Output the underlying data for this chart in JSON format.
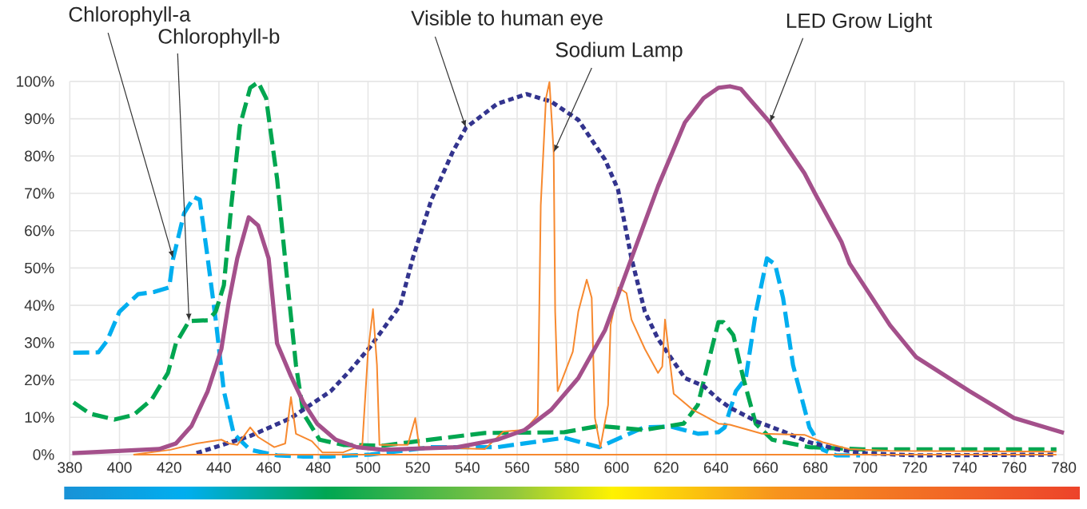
{
  "chart_data": {
    "type": "line",
    "xlim": [
      380,
      780
    ],
    "ylim": [
      -2,
      100
    ],
    "xticks": [
      380,
      400,
      420,
      440,
      460,
      480,
      500,
      520,
      540,
      560,
      580,
      600,
      620,
      640,
      660,
      680,
      700,
      720,
      740,
      760,
      780
    ],
    "yticks": [
      {
        "value": 0,
        "label": "0%"
      },
      {
        "value": 10,
        "label": "10%"
      },
      {
        "value": 20,
        "label": "20%"
      },
      {
        "value": 30,
        "label": "30%"
      },
      {
        "value": 40,
        "label": "40%"
      },
      {
        "value": 50,
        "label": "50%"
      },
      {
        "value": 60,
        "label": "60%"
      },
      {
        "value": 70,
        "label": "70%"
      },
      {
        "value": 80,
        "label": "80%"
      },
      {
        "value": 90,
        "label": "90%"
      },
      {
        "value": 100,
        "label": "100%"
      }
    ],
    "grid": true,
    "series": [
      {
        "name": "Chlorophyll-a",
        "color": "#00aeef",
        "line_style": "dashed",
        "x": [
          381.4,
          391.5,
          395,
          400,
          407.5,
          414,
          420,
          421.6,
          426,
          430,
          432.3,
          435.5,
          438.7,
          442,
          446,
          452.6,
          463.4,
          474,
          485,
          493.4,
          501,
          525.5,
          552,
          579,
          593,
          611,
          622,
          632.7,
          641,
          643.5,
          648,
          652,
          656,
          660.5,
          663.8,
          667,
          671,
          677.6,
          683,
          688.5,
          698
        ],
        "values": [
          27.3,
          27.4,
          30.5,
          38.3,
          43,
          43.6,
          44.8,
          52.6,
          64.7,
          69,
          68.3,
          52.6,
          36.2,
          17,
          5.5,
          1.3,
          -0.2,
          -0.5,
          -0.5,
          -0.2,
          0,
          2,
          2,
          4.5,
          2,
          7.3,
          7.5,
          5.6,
          6,
          7.3,
          17,
          20.5,
          38,
          52.6,
          51,
          42,
          24,
          7.3,
          1.3,
          -0.2,
          -0.2
        ]
      },
      {
        "name": "Chlorophyll-b",
        "color": "#00a650",
        "line_style": "dashed",
        "x": [
          381.5,
          388,
          398,
          405.6,
          413,
          419.5,
          422.7,
          428,
          435.5,
          438.7,
          442,
          445,
          448.4,
          452.6,
          455.8,
          459,
          463.4,
          467.7,
          471,
          474,
          480.5,
          490,
          506,
          520,
          547,
          579,
          593,
          611,
          627,
          632.7,
          638,
          641,
          643,
          647,
          651,
          656,
          662.6,
          677.6,
          699,
          777
        ],
        "values": [
          14,
          11,
          9.4,
          10.6,
          14.8,
          21.9,
          29.8,
          35.8,
          36,
          38.3,
          45.4,
          66.8,
          88,
          98.3,
          99.8,
          95.5,
          74,
          45.4,
          24,
          11,
          4,
          2.6,
          2.4,
          3.6,
          5.8,
          6,
          7.7,
          6.6,
          8.3,
          13.3,
          27.6,
          35.5,
          35.5,
          32,
          20.5,
          8.3,
          4,
          2,
          1.4,
          1.4
        ]
      },
      {
        "name": "Visible to human eye",
        "color": "#33348e",
        "line_style": "dotted",
        "x": [
          431,
          452.6,
          469,
          485,
          493,
          501,
          513,
          518,
          525.5,
          534,
          539.4,
          552,
          563.8,
          573.7,
          584.6,
          595.4,
          600.6,
          606,
          611.4,
          616.7,
          627.5,
          635,
          641,
          645.6,
          656,
          667,
          677.6,
          688.5,
          699,
          720.6,
          777
        ],
        "values": [
          0.4,
          5,
          9.8,
          17,
          22.7,
          29,
          40,
          52.6,
          68.3,
          81,
          87.6,
          94,
          96.6,
          94.6,
          89.7,
          79,
          71,
          52.6,
          38.3,
          31,
          20.5,
          18.4,
          14.8,
          12.6,
          9,
          6.2,
          3.3,
          1.5,
          0.4,
          -0.2,
          0
        ]
      },
      {
        "name": "Sodium Lamp",
        "color": "#f7892f",
        "line_style": "solid",
        "x": [
          405.6,
          420.5,
          431,
          441,
          444,
          447.4,
          452.6,
          455.8,
          462.3,
          466.7,
          469,
          471,
          477.4,
          481.6,
          490,
          497.7,
          500,
          502,
          503.6,
          504.6,
          516,
          519,
          520.6,
          547,
          554.5,
          563,
          568.3,
          569.5,
          571.6,
          573,
          574.7,
          575.3,
          576.3,
          582.4,
          584.6,
          588,
          590,
          591.3,
          593.5,
          596.6,
          597.6,
          600.8,
          604,
          606,
          611.4,
          616.7,
          618.4,
          619.5,
          621,
          623,
          630.7,
          635,
          641,
          645.6,
          658.5,
          675.6,
          683,
          693.6,
          710,
          777
        ],
        "values": [
          0,
          1.3,
          3,
          4,
          3,
          2.6,
          7.3,
          4.7,
          2,
          3,
          15.4,
          5.6,
          3.6,
          0.6,
          0.6,
          2.6,
          27.6,
          39,
          24,
          2.6,
          2.6,
          9.8,
          2,
          1.5,
          6.2,
          6.6,
          10.5,
          66.8,
          95.5,
          99.8,
          81,
          38.3,
          17,
          27.6,
          38.3,
          46.9,
          42,
          9.8,
          2,
          13.3,
          34.7,
          44.8,
          43.3,
          36.2,
          28.3,
          21.9,
          23.6,
          36.2,
          27.6,
          16.3,
          12,
          10.5,
          8.3,
          8,
          5.6,
          5.3,
          3.3,
          1.5,
          1,
          0.8
        ]
      },
      {
        "color": "#f7892f",
        "line_style": "solid",
        "x": [
          405.6,
          777
        ],
        "values": [
          0,
          0
        ]
      },
      {
        "name": "LED Grow Light",
        "color": "#a4508b",
        "line_style": "solid",
        "x": [
          381,
          416,
          422.7,
          429,
          435.5,
          441,
          444,
          447.4,
          452,
          455.8,
          460,
          463.4,
          469,
          474,
          479.5,
          487,
          495.5,
          506,
          536,
          552,
          563,
          573.7,
          584.6,
          595.4,
          606,
          616.7,
          627.5,
          635,
          641,
          645.6,
          650,
          661.7,
          675.6,
          680,
          690.5,
          693.8,
          710,
          720.6,
          742,
          760,
          780
        ],
        "values": [
          0.4,
          1.5,
          3,
          7.7,
          17,
          28.3,
          41,
          52.6,
          63.6,
          61.4,
          52.6,
          29.8,
          21,
          14,
          8.3,
          4,
          2,
          1.3,
          2,
          4,
          6.6,
          12,
          20.5,
          33.4,
          52.6,
          71.9,
          89,
          95.5,
          98.3,
          98.7,
          98,
          89,
          75.4,
          69.8,
          57,
          51.2,
          34.7,
          26.1,
          17,
          9.8,
          5.8
        ]
      }
    ]
  }
}
